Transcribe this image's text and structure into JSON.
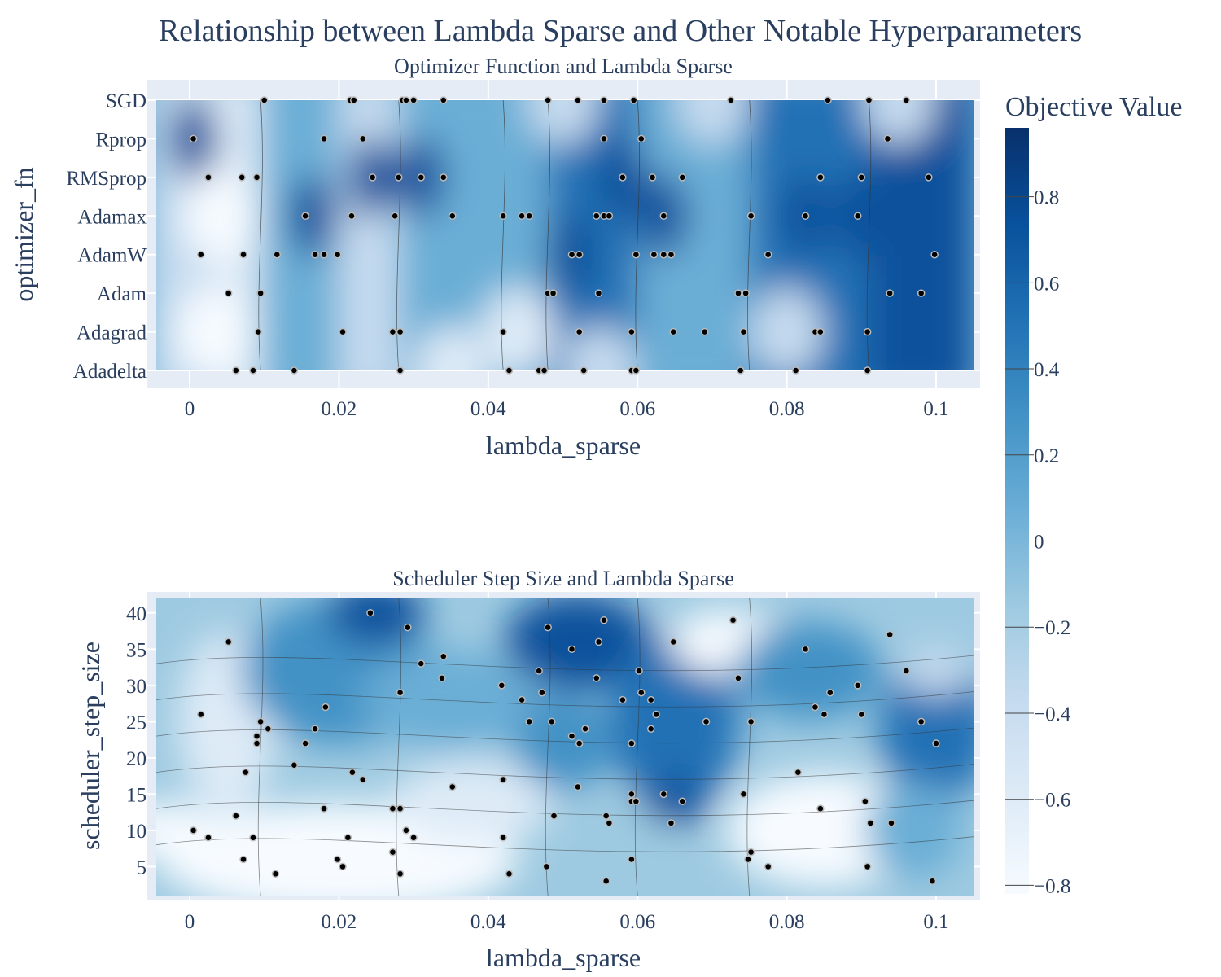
{
  "title": "Relationship between Lambda Sparse and Other Notable Hyperparameters",
  "colorbar": {
    "title": "Objective Value",
    "ticks": [
      "0.8",
      "0.6",
      "0.4",
      "0.2",
      "0",
      "−0.2",
      "−0.4",
      "−0.6",
      "−0.8"
    ],
    "tick_values": [
      0.8,
      0.6,
      0.4,
      0.2,
      0,
      -0.2,
      -0.4,
      -0.6,
      -0.8
    ],
    "range": [
      -0.82,
      0.96
    ],
    "colorscale": [
      "#f7fbff",
      "#deebf7",
      "#c6dbef",
      "#9ecae1",
      "#6baed6",
      "#4292c6",
      "#2171b5",
      "#08519c",
      "#08306b"
    ]
  },
  "chart_data": [
    {
      "type": "heatmap",
      "title": "Optimizer Function and Lambda Sparse",
      "xlabel": "lambda_sparse",
      "ylabel": "optimizer_fn",
      "x_ticks": [
        "0",
        "0.02",
        "0.04",
        "0.06",
        "0.08",
        "0.1"
      ],
      "x_tick_values": [
        0,
        0.02,
        0.04,
        0.06,
        0.08,
        0.1
      ],
      "xlim": [
        -0.0055,
        0.105
      ],
      "y_categories": [
        "Adadelta",
        "Adagrad",
        "Adam",
        "AdamW",
        "Adamax",
        "RMSprop",
        "Rprop",
        "SGD"
      ],
      "points": [
        [
          0.01,
          "SGD"
        ],
        [
          0.0215,
          "SGD"
        ],
        [
          0.022,
          "SGD"
        ],
        [
          0.0285,
          "SGD"
        ],
        [
          0.029,
          "SGD"
        ],
        [
          0.03,
          "SGD"
        ],
        [
          0.034,
          "SGD"
        ],
        [
          0.048,
          "SGD"
        ],
        [
          0.052,
          "SGD"
        ],
        [
          0.0555,
          "SGD"
        ],
        [
          0.0595,
          "SGD"
        ],
        [
          0.0725,
          "SGD"
        ],
        [
          0.0855,
          "SGD"
        ],
        [
          0.091,
          "SGD"
        ],
        [
          0.096,
          "SGD"
        ],
        [
          0.0005,
          "Rprop"
        ],
        [
          0.018,
          "Rprop"
        ],
        [
          0.0232,
          "Rprop"
        ],
        [
          0.0555,
          "Rprop"
        ],
        [
          0.0605,
          "Rprop"
        ],
        [
          0.0935,
          "Rprop"
        ],
        [
          0.0025,
          "RMSprop"
        ],
        [
          0.007,
          "RMSprop"
        ],
        [
          0.009,
          "RMSprop"
        ],
        [
          0.0245,
          "RMSprop"
        ],
        [
          0.028,
          "RMSprop"
        ],
        [
          0.031,
          "RMSprop"
        ],
        [
          0.034,
          "RMSprop"
        ],
        [
          0.058,
          "RMSprop"
        ],
        [
          0.062,
          "RMSprop"
        ],
        [
          0.066,
          "RMSprop"
        ],
        [
          0.0845,
          "RMSprop"
        ],
        [
          0.09,
          "RMSprop"
        ],
        [
          0.099,
          "RMSprop"
        ],
        [
          0.0155,
          "Adamax"
        ],
        [
          0.0217,
          "Adamax"
        ],
        [
          0.0275,
          "Adamax"
        ],
        [
          0.0352,
          "Adamax"
        ],
        [
          0.042,
          "Adamax"
        ],
        [
          0.0445,
          "Adamax"
        ],
        [
          0.0455,
          "Adamax"
        ],
        [
          0.0545,
          "Adamax"
        ],
        [
          0.0555,
          "Adamax"
        ],
        [
          0.0562,
          "Adamax"
        ],
        [
          0.0635,
          "Adamax"
        ],
        [
          0.0752,
          "Adamax"
        ],
        [
          0.0825,
          "Adamax"
        ],
        [
          0.0895,
          "Adamax"
        ],
        [
          0.0015,
          "AdamW"
        ],
        [
          0.0072,
          "AdamW"
        ],
        [
          0.0117,
          "AdamW"
        ],
        [
          0.0168,
          "AdamW"
        ],
        [
          0.018,
          "AdamW"
        ],
        [
          0.0198,
          "AdamW"
        ],
        [
          0.0512,
          "AdamW"
        ],
        [
          0.0522,
          "AdamW"
        ],
        [
          0.0598,
          "AdamW"
        ],
        [
          0.0622,
          "AdamW"
        ],
        [
          0.0635,
          "AdamW"
        ],
        [
          0.0645,
          "AdamW"
        ],
        [
          0.0775,
          "AdamW"
        ],
        [
          0.0998,
          "AdamW"
        ],
        [
          0.0052,
          "Adam"
        ],
        [
          0.0095,
          "Adam"
        ],
        [
          0.048,
          "Adam"
        ],
        [
          0.0487,
          "Adam"
        ],
        [
          0.0548,
          "Adam"
        ],
        [
          0.0735,
          "Adam"
        ],
        [
          0.0745,
          "Adam"
        ],
        [
          0.0938,
          "Adam"
        ],
        [
          0.098,
          "Adam"
        ],
        [
          0.0092,
          "Adagrad"
        ],
        [
          0.0205,
          "Adagrad"
        ],
        [
          0.0272,
          "Adagrad"
        ],
        [
          0.0282,
          "Adagrad"
        ],
        [
          0.042,
          "Adagrad"
        ],
        [
          0.0522,
          "Adagrad"
        ],
        [
          0.0592,
          "Adagrad"
        ],
        [
          0.0648,
          "Adagrad"
        ],
        [
          0.069,
          "Adagrad"
        ],
        [
          0.0742,
          "Adagrad"
        ],
        [
          0.0838,
          "Adagrad"
        ],
        [
          0.0845,
          "Adagrad"
        ],
        [
          0.0908,
          "Adagrad"
        ],
        [
          0.0062,
          "Adadelta"
        ],
        [
          0.0085,
          "Adadelta"
        ],
        [
          0.014,
          "Adadelta"
        ],
        [
          0.0282,
          "Adadelta"
        ],
        [
          0.0428,
          "Adadelta"
        ],
        [
          0.0468,
          "Adadelta"
        ],
        [
          0.0475,
          "Adadelta"
        ],
        [
          0.0528,
          "Adadelta"
        ],
        [
          0.0592,
          "Adadelta"
        ],
        [
          0.0598,
          "Adadelta"
        ],
        [
          0.0738,
          "Adadelta"
        ],
        [
          0.0812,
          "Adadelta"
        ],
        [
          0.0908,
          "Adadelta"
        ]
      ]
    },
    {
      "type": "heatmap",
      "title": "Scheduler Step Size and Lambda Sparse",
      "xlabel": "lambda_sparse",
      "ylabel": "scheduler_step_size",
      "x_ticks": [
        "0",
        "0.02",
        "0.04",
        "0.06",
        "0.08",
        "0.1"
      ],
      "x_tick_values": [
        0,
        0.02,
        0.04,
        0.06,
        0.08,
        0.1
      ],
      "xlim": [
        -0.0055,
        0.105
      ],
      "y_ticks": [
        "5",
        "10",
        "15",
        "20",
        "25",
        "30",
        "35",
        "40"
      ],
      "y_tick_values": [
        5,
        10,
        15,
        20,
        25,
        30,
        35,
        40
      ],
      "ylim": [
        1,
        42
      ],
      "points": [
        [
          0.0005,
          10
        ],
        [
          0.0025,
          9
        ],
        [
          0.0015,
          26
        ],
        [
          0.0052,
          36
        ],
        [
          0.0062,
          12
        ],
        [
          0.0072,
          6
        ],
        [
          0.0075,
          18
        ],
        [
          0.0085,
          9
        ],
        [
          0.009,
          22
        ],
        [
          0.009,
          23
        ],
        [
          0.0095,
          25
        ],
        [
          0.0105,
          24
        ],
        [
          0.0115,
          4
        ],
        [
          0.014,
          19
        ],
        [
          0.0155,
          22
        ],
        [
          0.0168,
          24
        ],
        [
          0.018,
          13
        ],
        [
          0.0182,
          27
        ],
        [
          0.0198,
          6
        ],
        [
          0.0205,
          5
        ],
        [
          0.0212,
          9
        ],
        [
          0.0218,
          18
        ],
        [
          0.0232,
          17
        ],
        [
          0.0242,
          40
        ],
        [
          0.0272,
          7
        ],
        [
          0.0272,
          13
        ],
        [
          0.0282,
          4
        ],
        [
          0.0282,
          13
        ],
        [
          0.0282,
          29
        ],
        [
          0.029,
          10
        ],
        [
          0.0292,
          38
        ],
        [
          0.03,
          9
        ],
        [
          0.031,
          33
        ],
        [
          0.034,
          34
        ],
        [
          0.0338,
          31
        ],
        [
          0.0352,
          16
        ],
        [
          0.042,
          9
        ],
        [
          0.042,
          17
        ],
        [
          0.0418,
          30
        ],
        [
          0.0428,
          4
        ],
        [
          0.0445,
          28
        ],
        [
          0.0455,
          25
        ],
        [
          0.0468,
          32
        ],
        [
          0.0472,
          29
        ],
        [
          0.0478,
          5
        ],
        [
          0.048,
          38
        ],
        [
          0.0485,
          25
        ],
        [
          0.0488,
          12
        ],
        [
          0.0512,
          23
        ],
        [
          0.0512,
          35
        ],
        [
          0.052,
          16
        ],
        [
          0.0522,
          22
        ],
        [
          0.053,
          24
        ],
        [
          0.0545,
          31
        ],
        [
          0.0548,
          36
        ],
        [
          0.0555,
          39
        ],
        [
          0.0558,
          3
        ],
        [
          0.0558,
          12
        ],
        [
          0.0562,
          11
        ],
        [
          0.058,
          28
        ],
        [
          0.0592,
          22
        ],
        [
          0.0592,
          15
        ],
        [
          0.0592,
          14
        ],
        [
          0.0592,
          6
        ],
        [
          0.0598,
          14
        ],
        [
          0.0602,
          32
        ],
        [
          0.0605,
          29
        ],
        [
          0.0618,
          28
        ],
        [
          0.0618,
          24
        ],
        [
          0.0625,
          26
        ],
        [
          0.0635,
          15
        ],
        [
          0.0645,
          11
        ],
        [
          0.0648,
          36
        ],
        [
          0.066,
          14
        ],
        [
          0.0692,
          25
        ],
        [
          0.0728,
          39
        ],
        [
          0.0735,
          31
        ],
        [
          0.0742,
          15
        ],
        [
          0.0748,
          6
        ],
        [
          0.0752,
          25
        ],
        [
          0.0752,
          7
        ],
        [
          0.0775,
          5
        ],
        [
          0.0815,
          18
        ],
        [
          0.0825,
          35
        ],
        [
          0.0838,
          27
        ],
        [
          0.0845,
          13
        ],
        [
          0.085,
          26
        ],
        [
          0.0858,
          29
        ],
        [
          0.0895,
          30
        ],
        [
          0.09,
          26
        ],
        [
          0.0905,
          14
        ],
        [
          0.0908,
          5
        ],
        [
          0.0912,
          11
        ],
        [
          0.0938,
          37
        ],
        [
          0.094,
          11
        ],
        [
          0.096,
          32
        ],
        [
          0.098,
          25
        ],
        [
          0.0995,
          3
        ],
        [
          0.1,
          22
        ]
      ]
    }
  ]
}
